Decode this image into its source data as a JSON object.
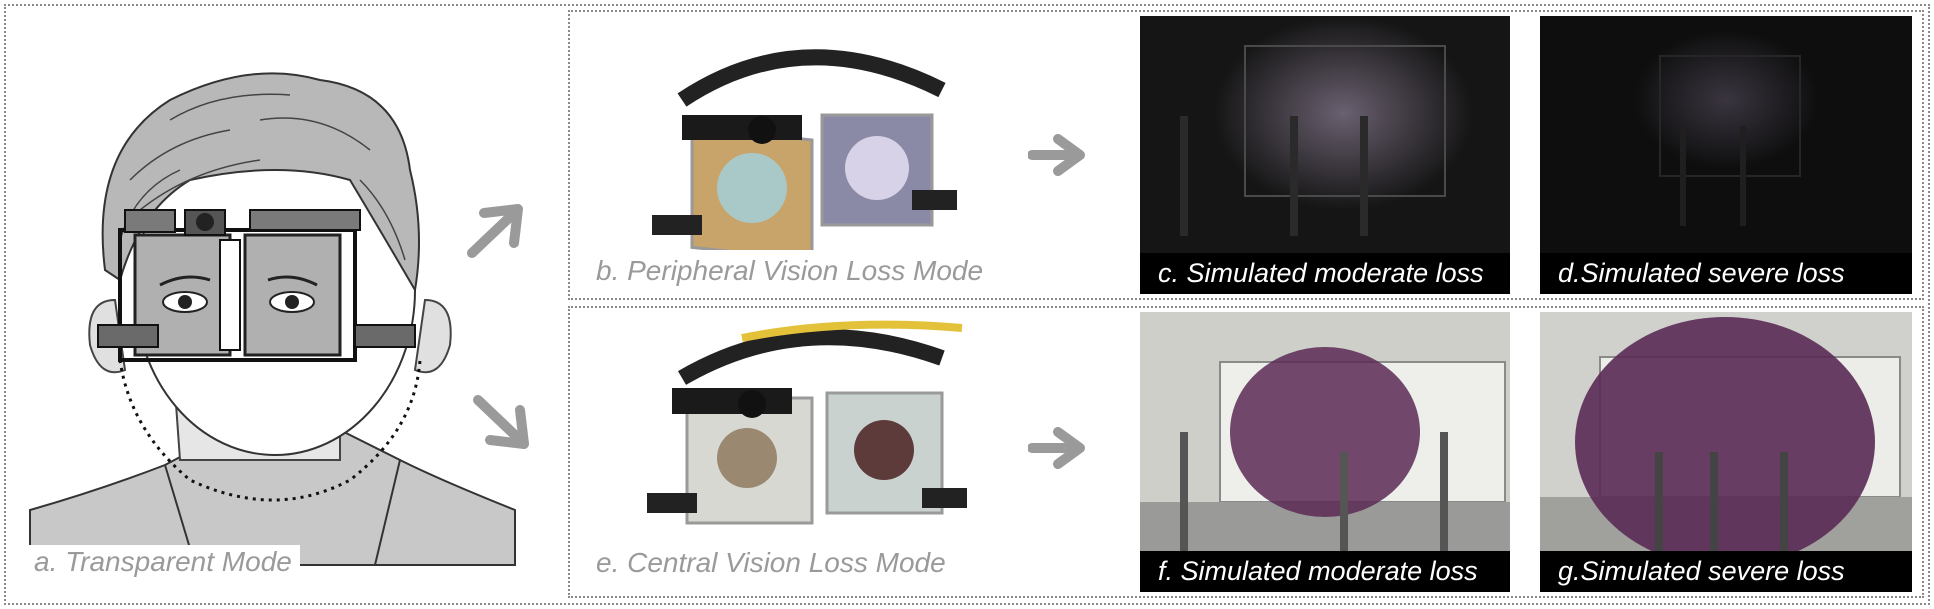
{
  "figure": {
    "panel_a": {
      "label": "a. Transparent Mode"
    },
    "panel_b": {
      "label": "b. Peripheral Vision Loss Mode"
    },
    "panel_c": {
      "label": "c. Simulated moderate loss"
    },
    "panel_d": {
      "label": "d.Simulated severe loss"
    },
    "panel_e": {
      "label": "e. Central Vision Loss Mode"
    },
    "panel_f": {
      "label": "f. Simulated moderate loss"
    },
    "panel_g": {
      "label": "g.Simulated severe loss"
    }
  },
  "colors": {
    "arrow": "#9a9a9a",
    "caption_bg": "#000000",
    "caption_text": "#ffffff",
    "light_caption_text": "#9a9a9a",
    "central_loss_tint": "#5a2a55"
  }
}
